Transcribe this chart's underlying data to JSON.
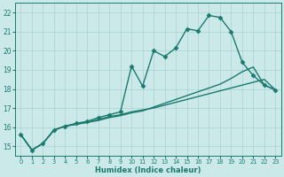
{
  "xlabel": "Humidex (Indice chaleur)",
  "bg_color": "#cce9ea",
  "grid_color": "#b0d4d6",
  "line_color": "#1a7a6e",
  "xlim": [
    -0.5,
    23.5
  ],
  "ylim": [
    14.5,
    22.5
  ],
  "xticks": [
    0,
    1,
    2,
    3,
    4,
    5,
    6,
    7,
    8,
    9,
    10,
    11,
    12,
    13,
    14,
    15,
    16,
    17,
    18,
    19,
    20,
    21,
    22,
    23
  ],
  "yticks": [
    15,
    16,
    17,
    18,
    19,
    20,
    21,
    22
  ],
  "line1_x": [
    0,
    1,
    2,
    3,
    4,
    5,
    6,
    7,
    8,
    9,
    10,
    11,
    12,
    13,
    14,
    15,
    16,
    17,
    18,
    19,
    20,
    21,
    22,
    23
  ],
  "line1_y": [
    15.6,
    14.8,
    15.15,
    15.85,
    16.05,
    16.2,
    16.3,
    16.5,
    16.65,
    16.8,
    19.2,
    18.15,
    20.0,
    19.7,
    20.15,
    21.15,
    21.05,
    21.85,
    21.75,
    21.0,
    19.4,
    18.7,
    18.2,
    17.95
  ],
  "line2_x": [
    0,
    1,
    2,
    3,
    4,
    5,
    6,
    7,
    8,
    9,
    10,
    11,
    12,
    13,
    14,
    15,
    16,
    17,
    18,
    19,
    20,
    21,
    22,
    23
  ],
  "line2_y": [
    15.6,
    14.8,
    15.15,
    15.85,
    16.05,
    16.15,
    16.25,
    16.4,
    16.55,
    16.65,
    16.8,
    16.9,
    17.0,
    17.15,
    17.3,
    17.45,
    17.6,
    17.75,
    17.9,
    18.05,
    18.2,
    18.35,
    18.5,
    17.95
  ],
  "line3_x": [
    0,
    1,
    2,
    3,
    4,
    5,
    6,
    7,
    8,
    9,
    10,
    11,
    12,
    13,
    14,
    15,
    16,
    17,
    18,
    19,
    20,
    21,
    22,
    23
  ],
  "line3_y": [
    15.6,
    14.8,
    15.15,
    15.85,
    16.05,
    16.15,
    16.25,
    16.35,
    16.5,
    16.6,
    16.75,
    16.85,
    17.05,
    17.25,
    17.45,
    17.65,
    17.85,
    18.05,
    18.25,
    18.55,
    18.9,
    19.15,
    18.2,
    17.95
  ],
  "marker": "D",
  "marker_size": 2.5,
  "line_width": 1.0
}
